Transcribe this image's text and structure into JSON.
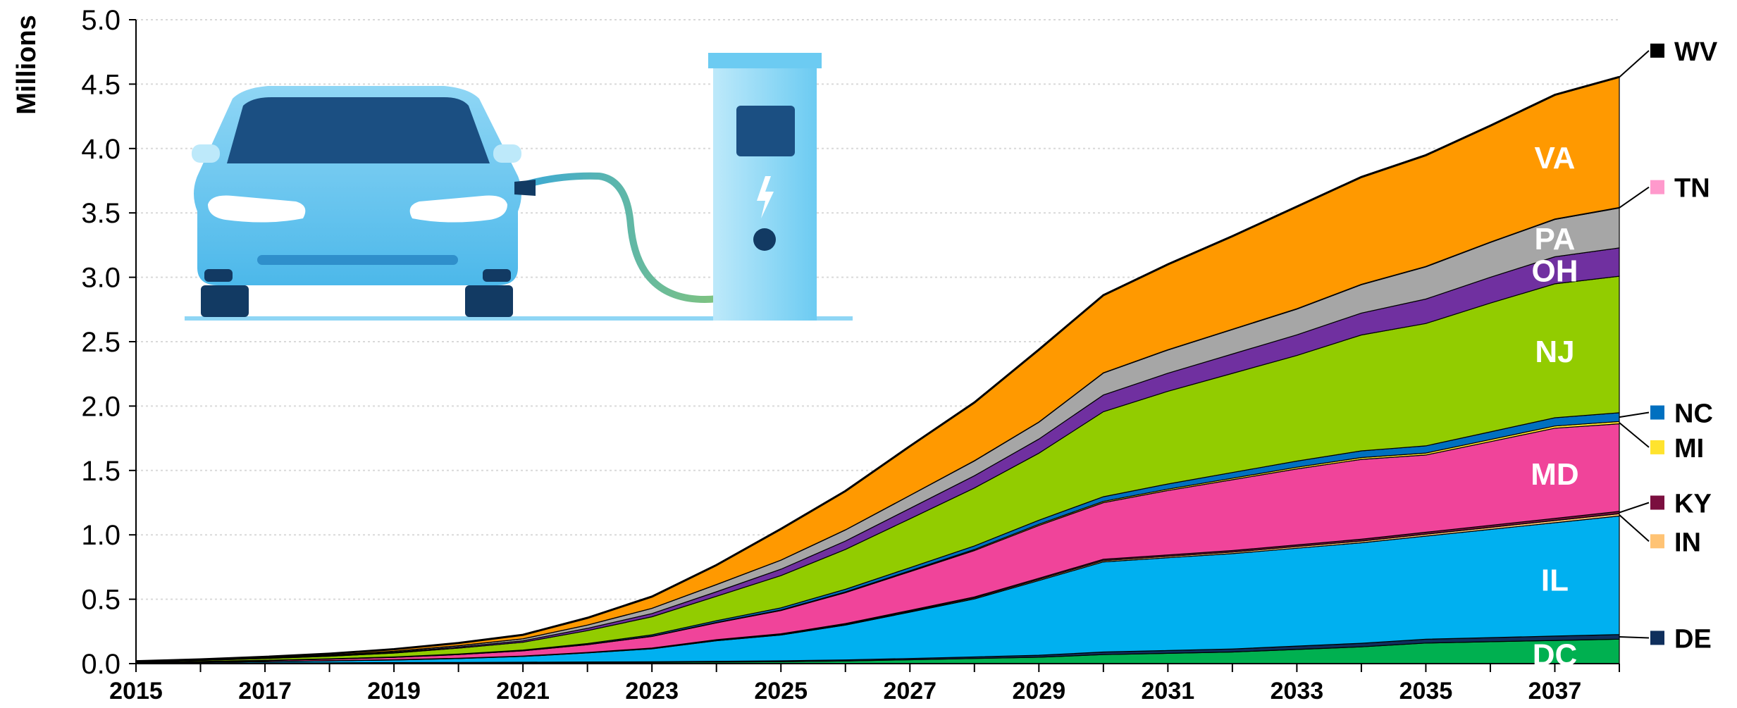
{
  "chart_data": {
    "type": "area",
    "stacked": true,
    "ylabel": "Millions",
    "ylim": [
      0,
      5.0
    ],
    "yticks": [
      "0.0",
      "0.5",
      "1.0",
      "1.5",
      "2.0",
      "2.5",
      "3.0",
      "3.5",
      "4.0",
      "4.5",
      "5.0"
    ],
    "xlim": [
      2015,
      2038
    ],
    "xticks": [
      "2015",
      "2017",
      "2019",
      "2021",
      "2023",
      "2025",
      "2027",
      "2029",
      "2031",
      "2033",
      "2035",
      "2037"
    ],
    "grid": "horizontal dotted",
    "x": [
      2015,
      2016,
      2017,
      2018,
      2019,
      2020,
      2021,
      2022,
      2023,
      2024,
      2025,
      2026,
      2027,
      2028,
      2029,
      2030,
      2031,
      2032,
      2033,
      2034,
      2035,
      2036,
      2037,
      2038
    ],
    "series": [
      {
        "name": "DC",
        "color": "#00b050",
        "values": [
          0.002,
          0.003,
          0.004,
          0.005,
          0.006,
          0.007,
          0.008,
          0.009,
          0.01,
          0.012,
          0.015,
          0.02,
          0.03,
          0.04,
          0.05,
          0.07,
          0.08,
          0.09,
          0.11,
          0.13,
          0.16,
          0.17,
          0.18,
          0.19
        ]
      },
      {
        "name": "DE",
        "color": "#0f2f5c",
        "values": [
          0.0005,
          0.001,
          0.0012,
          0.0015,
          0.002,
          0.0025,
          0.003,
          0.004,
          0.005,
          0.006,
          0.007,
          0.009,
          0.01,
          0.012,
          0.015,
          0.02,
          0.022,
          0.024,
          0.026,
          0.028,
          0.03,
          0.032,
          0.034,
          0.036
        ]
      },
      {
        "name": "IL",
        "color": "#00b0f0",
        "values": [
          0.004,
          0.006,
          0.01,
          0.015,
          0.02,
          0.03,
          0.045,
          0.07,
          0.1,
          0.16,
          0.2,
          0.27,
          0.36,
          0.45,
          0.58,
          0.7,
          0.72,
          0.74,
          0.76,
          0.78,
          0.8,
          0.84,
          0.88,
          0.92
        ]
      },
      {
        "name": "IN",
        "color": "#ffc374",
        "values": [
          0.0002,
          0.0003,
          0.0005,
          0.0007,
          0.001,
          0.0012,
          0.0015,
          0.002,
          0.003,
          0.004,
          0.005,
          0.006,
          0.007,
          0.008,
          0.009,
          0.01,
          0.011,
          0.012,
          0.013,
          0.014,
          0.015,
          0.016,
          0.017,
          0.018
        ]
      },
      {
        "name": "KY",
        "color": "#7b0f3f",
        "values": [
          0.0002,
          0.0003,
          0.0005,
          0.0007,
          0.001,
          0.0012,
          0.0015,
          0.002,
          0.003,
          0.004,
          0.005,
          0.006,
          0.007,
          0.008,
          0.009,
          0.01,
          0.011,
          0.012,
          0.013,
          0.014,
          0.015,
          0.016,
          0.017,
          0.018
        ]
      },
      {
        "name": "MD",
        "color": "#f0449a",
        "values": [
          0.003,
          0.005,
          0.008,
          0.012,
          0.018,
          0.028,
          0.04,
          0.06,
          0.09,
          0.13,
          0.18,
          0.24,
          0.3,
          0.36,
          0.41,
          0.44,
          0.5,
          0.55,
          0.59,
          0.62,
          0.6,
          0.65,
          0.7,
          0.68
        ]
      },
      {
        "name": "MI",
        "color": "#ffe32e",
        "values": [
          0.0002,
          0.0003,
          0.0005,
          0.0007,
          0.001,
          0.0012,
          0.0015,
          0.002,
          0.003,
          0.004,
          0.005,
          0.006,
          0.007,
          0.008,
          0.009,
          0.01,
          0.011,
          0.012,
          0.013,
          0.014,
          0.015,
          0.016,
          0.017,
          0.018
        ]
      },
      {
        "name": "NC",
        "color": "#0070c0",
        "values": [
          0.0005,
          0.001,
          0.0015,
          0.002,
          0.003,
          0.004,
          0.005,
          0.007,
          0.01,
          0.013,
          0.016,
          0.02,
          0.024,
          0.028,
          0.032,
          0.036,
          0.04,
          0.044,
          0.048,
          0.052,
          0.056,
          0.06,
          0.064,
          0.068
        ]
      },
      {
        "name": "NJ",
        "color": "#92cc00",
        "values": [
          0.004,
          0.008,
          0.013,
          0.02,
          0.03,
          0.045,
          0.06,
          0.1,
          0.14,
          0.19,
          0.25,
          0.31,
          0.38,
          0.45,
          0.52,
          0.66,
          0.72,
          0.77,
          0.82,
          0.9,
          0.95,
          1.0,
          1.04,
          1.06
        ]
      },
      {
        "name": "OH",
        "color": "#7030a0",
        "values": [
          0.0008,
          0.0015,
          0.0025,
          0.004,
          0.006,
          0.009,
          0.012,
          0.018,
          0.025,
          0.035,
          0.05,
          0.065,
          0.08,
          0.095,
          0.11,
          0.13,
          0.14,
          0.15,
          0.16,
          0.17,
          0.19,
          0.2,
          0.21,
          0.22
        ]
      },
      {
        "name": "PA",
        "color": "#a6a6a6",
        "values": [
          0.001,
          0.002,
          0.003,
          0.005,
          0.008,
          0.01,
          0.015,
          0.025,
          0.04,
          0.055,
          0.07,
          0.085,
          0.1,
          0.115,
          0.13,
          0.17,
          0.18,
          0.19,
          0.2,
          0.22,
          0.25,
          0.27,
          0.29,
          0.31
        ]
      },
      {
        "name": "TN",
        "color": "#ff99cc",
        "values": [
          0.0001,
          0.0002,
          0.0003,
          0.0004,
          0.0005,
          0.0006,
          0.0007,
          0.0008,
          0.001,
          0.0012,
          0.0014,
          0.0016,
          0.0018,
          0.002,
          0.0022,
          0.0024,
          0.0026,
          0.0028,
          0.003,
          0.0032,
          0.0034,
          0.0036,
          0.0038,
          0.004
        ]
      },
      {
        "name": "VA",
        "color": "#ff9900",
        "values": [
          0.002,
          0.004,
          0.007,
          0.01,
          0.015,
          0.02,
          0.03,
          0.055,
          0.09,
          0.15,
          0.24,
          0.3,
          0.38,
          0.45,
          0.56,
          0.6,
          0.66,
          0.72,
          0.79,
          0.83,
          0.86,
          0.9,
          0.96,
          1.01
        ]
      },
      {
        "name": "WV",
        "color": "#000000",
        "values": [
          0.0001,
          0.0002,
          0.0003,
          0.0004,
          0.0005,
          0.0006,
          0.0007,
          0.0008,
          0.001,
          0.0012,
          0.0014,
          0.0016,
          0.0018,
          0.002,
          0.0022,
          0.0024,
          0.0026,
          0.0028,
          0.003,
          0.0032,
          0.0034,
          0.0036,
          0.0038,
          0.004
        ]
      }
    ],
    "in_area_labels": [
      "DC",
      "IL",
      "MD",
      "NJ",
      "OH",
      "PA",
      "VA"
    ],
    "side_legend": [
      "WV",
      "TN",
      "NC",
      "MI",
      "KY",
      "IN",
      "DE"
    ],
    "illustration": "electric car connected to charging station"
  }
}
